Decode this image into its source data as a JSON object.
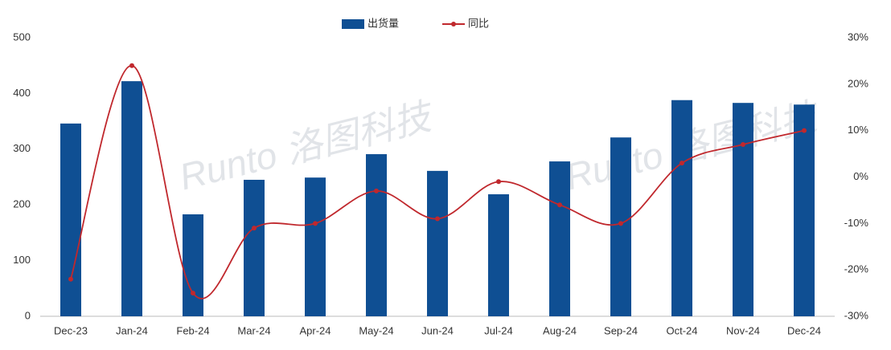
{
  "chart_data": {
    "type": "bar-line",
    "categories": [
      "Dec-23",
      "Jan-24",
      "Feb-24",
      "Mar-24",
      "Apr-24",
      "May-24",
      "Jun-24",
      "Jul-24",
      "Aug-24",
      "Sep-24",
      "Oct-24",
      "Nov-24",
      "Dec-24"
    ],
    "series": [
      {
        "name": "出货量",
        "type": "bar",
        "color": "#0f4f93",
        "values": [
          346,
          422,
          183,
          245,
          249,
          291,
          261,
          219,
          278,
          321,
          388,
          383,
          380
        ]
      },
      {
        "name": "同比",
        "type": "line",
        "axis": "y2",
        "color": "#c0282d",
        "values": [
          -22,
          24,
          -25,
          -11,
          -10,
          -3,
          -9,
          -1,
          -6,
          -10,
          3,
          7,
          10
        ]
      }
    ],
    "ylim": [
      0,
      500
    ],
    "yticks": [
      0,
      100,
      200,
      300,
      400,
      500
    ],
    "y2lim": [
      -30,
      30
    ],
    "y2ticks": [
      {
        "value": -30,
        "label": "-30%"
      },
      {
        "value": -20,
        "label": "-20%"
      },
      {
        "value": -10,
        "label": "-10%"
      },
      {
        "value": 0,
        "label": "0%"
      },
      {
        "value": 10,
        "label": "10%"
      },
      {
        "value": 20,
        "label": "20%"
      },
      {
        "value": 30,
        "label": "30%"
      }
    ],
    "legend": "top",
    "watermark": "Runto 洛图科技"
  }
}
